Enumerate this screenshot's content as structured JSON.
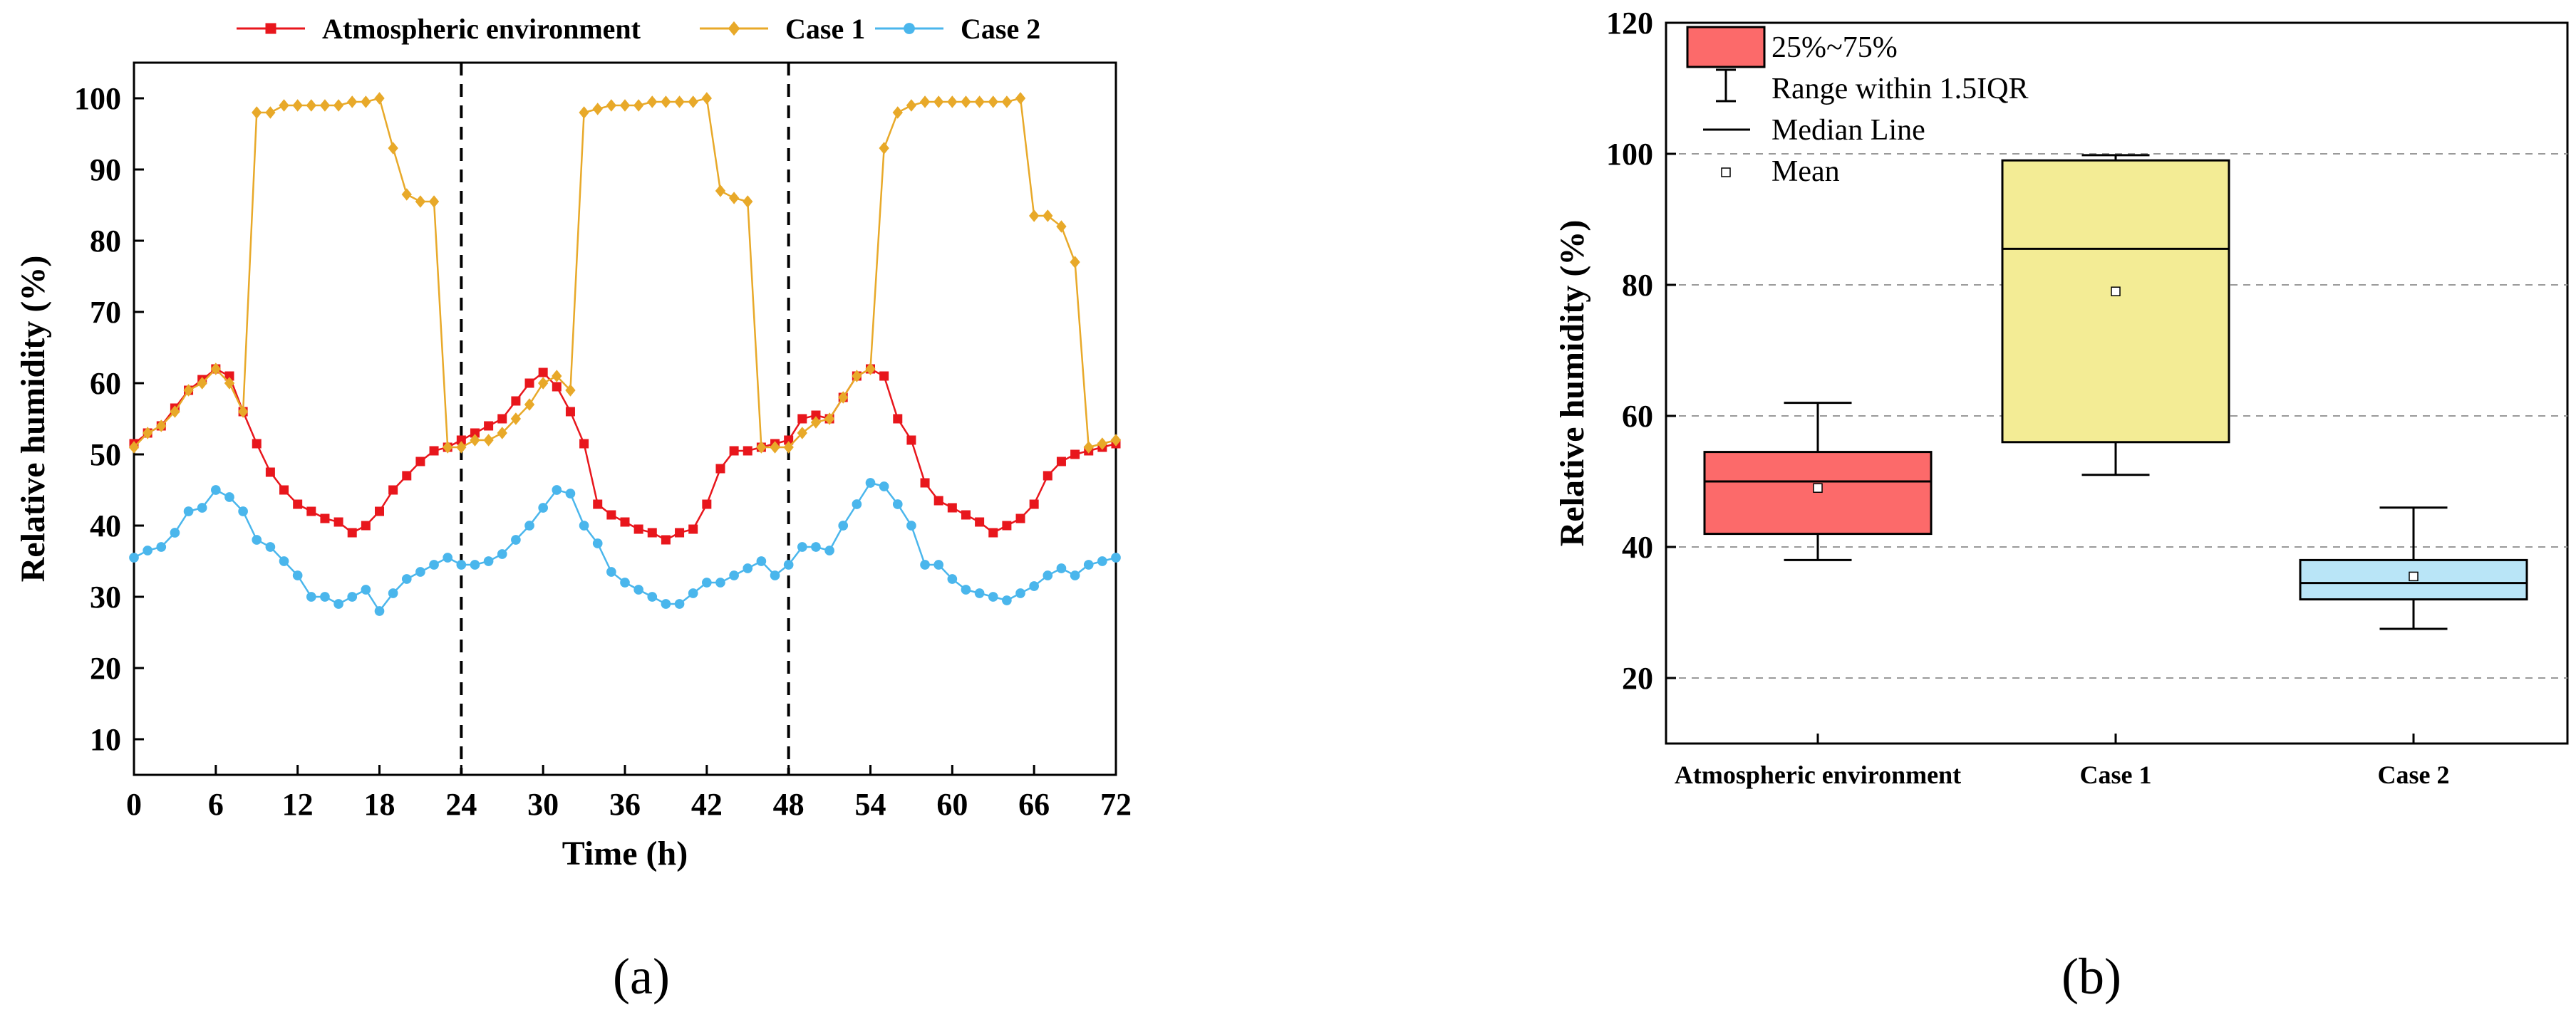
{
  "panel_labels": {
    "a": "(a)",
    "b": "(b)"
  },
  "chart_data": [
    {
      "type": "line",
      "panel": "a",
      "title": "",
      "xlabel": "Time (h)",
      "ylabel": "Relative humidity (%)",
      "xlim": [
        0,
        72
      ],
      "ylim": [
        5,
        105
      ],
      "xticks": [
        0,
        6,
        12,
        18,
        24,
        30,
        36,
        42,
        48,
        54,
        60,
        66,
        72
      ],
      "yticks": [
        10,
        20,
        30,
        40,
        50,
        60,
        70,
        80,
        90,
        100
      ],
      "grid": false,
      "legend_position": "top",
      "vlines": [
        24,
        48
      ],
      "x": [
        0,
        1,
        2,
        3,
        4,
        5,
        6,
        7,
        8,
        9,
        10,
        11,
        12,
        13,
        14,
        15,
        16,
        17,
        18,
        19,
        20,
        21,
        22,
        23,
        24,
        25,
        26,
        27,
        28,
        29,
        30,
        31,
        32,
        33,
        34,
        35,
        36,
        37,
        38,
        39,
        40,
        41,
        42,
        43,
        44,
        45,
        46,
        47,
        48,
        49,
        50,
        51,
        52,
        53,
        54,
        55,
        56,
        57,
        58,
        59,
        60,
        61,
        62,
        63,
        64,
        65,
        66,
        67,
        68,
        69,
        70,
        71,
        72
      ],
      "series": [
        {
          "name": "Atmospheric environment",
          "color": "#e8161c",
          "marker": "square",
          "values": [
            51.5,
            53,
            54,
            56.5,
            59,
            60.5,
            62,
            61,
            56,
            51.5,
            47.5,
            45,
            43,
            42,
            41,
            40.5,
            39,
            40,
            42,
            45,
            47,
            49,
            50.5,
            51,
            52,
            53,
            54,
            55,
            57.5,
            60,
            61.5,
            59.5,
            56,
            51.5,
            43,
            41.5,
            40.5,
            39.5,
            39,
            38,
            39,
            39.5,
            43,
            48,
            50.5,
            50.5,
            51,
            51.5,
            52,
            55,
            55.5,
            55,
            58,
            61,
            62,
            61,
            55,
            52,
            46,
            43.5,
            42.5,
            41.5,
            40.5,
            39,
            40,
            41,
            43,
            47,
            49,
            50,
            50.5,
            51,
            51.5
          ]
        },
        {
          "name": "Case 1",
          "color": "#e8a929",
          "marker": "diamond",
          "values": [
            51,
            53,
            54,
            56,
            59,
            60,
            62,
            60,
            56,
            98,
            98,
            99,
            99,
            99,
            99,
            99,
            99.5,
            99.5,
            100,
            93,
            86.5,
            85.5,
            85.5,
            51,
            51,
            52,
            52,
            53,
            55,
            57,
            60,
            61,
            59,
            98,
            98.5,
            99,
            99,
            99,
            99.5,
            99.5,
            99.5,
            99.5,
            100,
            87,
            86,
            85.5,
            51,
            51,
            51,
            53,
            54.5,
            55,
            58,
            61,
            62,
            93,
            98,
            99,
            99.5,
            99.5,
            99.5,
            99.5,
            99.5,
            99.5,
            99.5,
            100,
            83.5,
            83.5,
            82,
            77,
            51,
            51.5,
            52
          ]
        },
        {
          "name": "Case 2",
          "color": "#4ab6ec",
          "marker": "circle",
          "values": [
            35.5,
            36.5,
            37,
            39,
            42,
            42.5,
            45,
            44,
            42,
            38,
            37,
            35,
            33,
            30,
            30,
            29,
            30,
            31,
            28,
            30.5,
            32.5,
            33.5,
            34.5,
            35.5,
            34.5,
            34.5,
            35,
            36,
            38,
            40,
            42.5,
            45,
            44.5,
            40,
            37.5,
            33.5,
            32,
            31,
            30,
            29,
            29,
            30.5,
            32,
            32,
            33,
            34,
            35,
            33,
            34.5,
            37,
            37,
            36.5,
            40,
            43,
            46,
            45.5,
            43,
            40,
            34.5,
            34.5,
            32.5,
            31,
            30.5,
            30,
            29.5,
            30.5,
            31.5,
            33,
            34,
            33,
            34.5,
            35,
            35.5
          ]
        }
      ]
    },
    {
      "type": "box",
      "panel": "b",
      "title": "",
      "xlabel": "",
      "ylabel": "Relative humidity (%)",
      "ylim": [
        10,
        120
      ],
      "yticks": [
        20,
        40,
        60,
        80,
        100,
        120
      ],
      "grid": true,
      "legend_position": "top-left",
      "legend": {
        "box": "25%~75%",
        "range": "Range within 1.5IQR",
        "median": "Median Line",
        "mean": "Mean"
      },
      "categories": [
        "Atmospheric environment",
        "Case 1",
        "Case 2"
      ],
      "boxes": [
        {
          "name": "Atmospheric environment",
          "color": "#fc6a6a",
          "whisker_low": 38,
          "q1": 42,
          "median": 50,
          "q3": 54.5,
          "whisker_high": 62,
          "mean": 49
        },
        {
          "name": "Case 1",
          "color": "#f3ec95",
          "whisker_low": 51,
          "q1": 56,
          "median": 85.5,
          "q3": 99,
          "whisker_high": 99.8,
          "mean": 79
        },
        {
          "name": "Case 2",
          "color": "#b9e5f7",
          "whisker_low": 27.5,
          "q1": 32,
          "median": 34.5,
          "q3": 38,
          "whisker_high": 46,
          "mean": 35.5
        }
      ]
    }
  ]
}
